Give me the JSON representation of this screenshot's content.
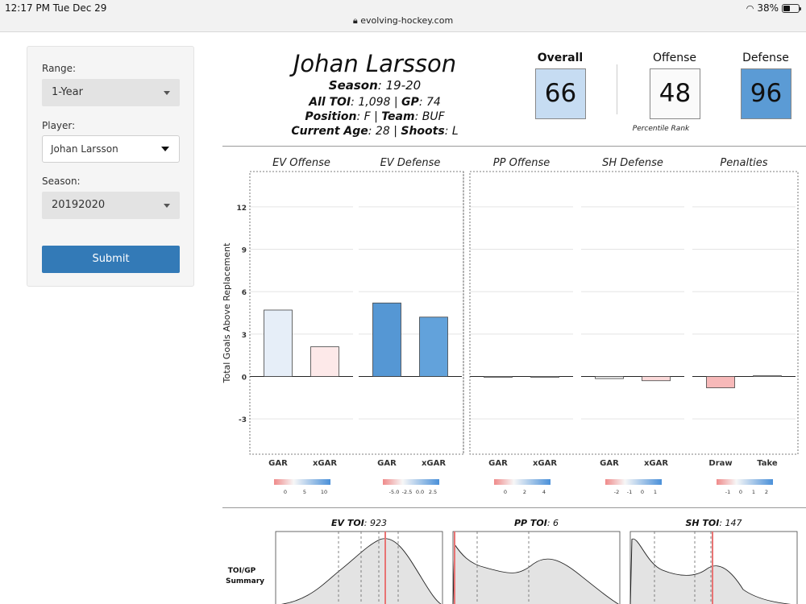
{
  "status": {
    "time": "12:17 PM  Tue Dec 29",
    "battery": "38%",
    "battery_level": 0.38,
    "url": "evolving-hockey.com"
  },
  "sidebar": {
    "range_label": "Range:",
    "range_value": "1-Year",
    "player_label": "Player:",
    "player_value": "Johan Larsson",
    "season_label": "Season:",
    "season_value": "20192020",
    "submit_label": "Submit"
  },
  "header": {
    "name": "Johan Larsson",
    "season_key": "Season",
    "season_val": ": 19-20",
    "toi_key": "All TOI",
    "toi_val": ": 1,098 | ",
    "gp_key": "GP",
    "gp_val": ": 74",
    "position_key": "Position",
    "position_val": ": F | ",
    "team_key": "Team",
    "team_val": ": BUF",
    "age_key": "Current Age",
    "age_val": ": 28 | ",
    "shoots_key": "Shoots",
    "shoots_val": ": L"
  },
  "ranks": {
    "overall_label": "Overall",
    "overall_value": "66",
    "overall_color": "#c6dcf2",
    "offense_label": "Offense",
    "offense_value": "48",
    "offense_color": "#fafafa",
    "defense_label": "Defense",
    "defense_value": "96",
    "defense_color": "#5b9bd5",
    "percentile_label": "Percentile Rank"
  },
  "chart_data": [
    {
      "type": "bar",
      "ylabel": "Total Goals Above Replacement",
      "ylim": [
        -5.5,
        14.5
      ],
      "yticks": [
        "12",
        "9",
        "6",
        "3",
        "0",
        "-3"
      ],
      "panels": [
        {
          "title": "EV Offense",
          "categories": [
            "GAR",
            "xGAR"
          ],
          "values": [
            4.7,
            2.1
          ],
          "colors": [
            "#e6eef8",
            "#fde9e9"
          ],
          "legend_ticks": [
            "0",
            "5",
            "10"
          ]
        },
        {
          "title": "EV Defense",
          "categories": [
            "GAR",
            "xGAR"
          ],
          "values": [
            5.2,
            4.2
          ],
          "colors": [
            "#5597d4",
            "#62a2db"
          ],
          "legend_ticks": [
            "-5.0",
            "-2.5",
            "0.0",
            "2.5"
          ]
        },
        {
          "title": "PP Offense",
          "categories": [
            "GAR",
            "xGAR"
          ],
          "values": [
            -0.05,
            -0.03
          ],
          "colors": [
            "#f5f5f5",
            "#f5f5f5"
          ],
          "legend_ticks": [
            "0",
            "2",
            "4"
          ]
        },
        {
          "title": "SH Defense",
          "categories": [
            "GAR",
            "xGAR"
          ],
          "values": [
            -0.15,
            -0.3
          ],
          "colors": [
            "#f0f0f0",
            "#fcdada"
          ],
          "legend_ticks": [
            "-2",
            "-1",
            "0",
            "1"
          ]
        },
        {
          "title": "Penalties",
          "categories": [
            "Draw",
            "Take"
          ],
          "values": [
            -0.8,
            0.05
          ],
          "colors": [
            "#f7b9b9",
            "#f5f5f5"
          ],
          "legend_ticks": [
            "-1",
            "0",
            "1",
            "2"
          ]
        }
      ]
    },
    {
      "type": "area",
      "side_label_1": "TOI/GP",
      "side_label_2": "Summary",
      "panels": [
        {
          "title_key": "EV TOI",
          "title_val": ": 923"
        },
        {
          "title_key": "PP TOI",
          "title_val": ": 6"
        },
        {
          "title_key": "SH TOI",
          "title_val": ": 147"
        }
      ]
    }
  ]
}
